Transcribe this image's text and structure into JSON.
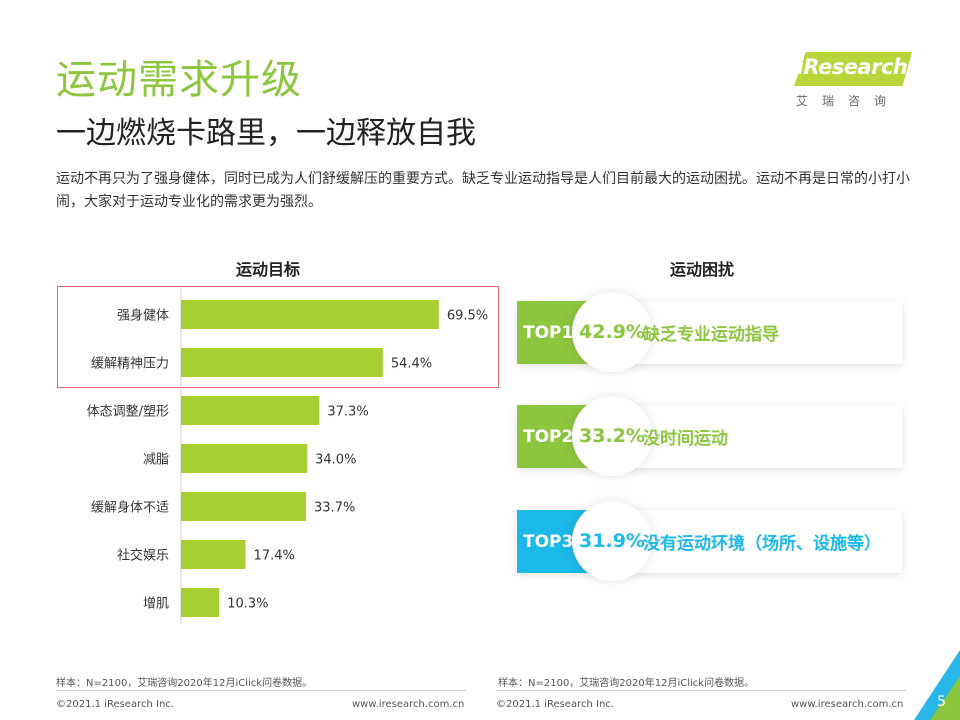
{
  "header": {
    "title": "运动需求升级",
    "subtitle": "一边燃烧卡路里，一边释放自我",
    "intro": "运动不再只为了强身健体，同时已成为人们舒缓解压的重要方式。缺乏专业运动指导是人们目前最大的运动困扰。运动不再是日常的小打小闹，大家对于运动专业化的需求更为强烈。"
  },
  "logo": {
    "brand": "iResearch",
    "cn": "艾瑞咨询"
  },
  "chart_data": [
    {
      "type": "bar",
      "orientation": "horizontal",
      "title": "运动目标",
      "categories": [
        "强身健体",
        "缓解精神压力",
        "体态调整/塑形",
        "减脂",
        "缓解身体不适",
        "社交娱乐",
        "增肌"
      ],
      "values": [
        69.5,
        54.4,
        37.3,
        34.0,
        33.7,
        17.4,
        10.3
      ],
      "value_labels": [
        "69.5%",
        "54.4%",
        "37.3%",
        "34.0%",
        "33.7%",
        "17.4%",
        "10.3%"
      ],
      "xlim": [
        0,
        80
      ],
      "grid": false,
      "bar_color": "#a8cf32",
      "highlighted": [
        "强身健体",
        "缓解精神压力"
      ],
      "highlight_color": "#e06a6a"
    },
    {
      "type": "table",
      "title": "运动困扰",
      "rows": [
        {
          "rank": "TOP1",
          "value": 42.9,
          "label": "42.9%",
          "text": "缺乏专业运动指导",
          "color": "#8cc63f"
        },
        {
          "rank": "TOP2",
          "value": 33.2,
          "label": "33.2%",
          "text": "没时间运动",
          "color": "#8cc63f"
        },
        {
          "rank": "TOP3",
          "value": 31.9,
          "label": "31.9%",
          "text": "没有运动环境（场所、设施等）",
          "color": "#1cb8e8"
        }
      ]
    }
  ],
  "notes": {
    "left": "样本：N=2100，艾瑞咨询2020年12月iClick问卷数据。",
    "right": "样本：N=2100，艾瑞咨询2020年12月iClick问卷数据。"
  },
  "footer": {
    "copyright_left": "©2021.1 iResearch Inc.",
    "url_left": "www.iresearch.com.cn",
    "copyright_right": "©2021.1 iResearch Inc.",
    "url_right": "www.iresearch.com.cn",
    "page": "5"
  },
  "colors": {
    "accent_green": "#8cc63f",
    "accent_blue": "#1cb8e8"
  }
}
